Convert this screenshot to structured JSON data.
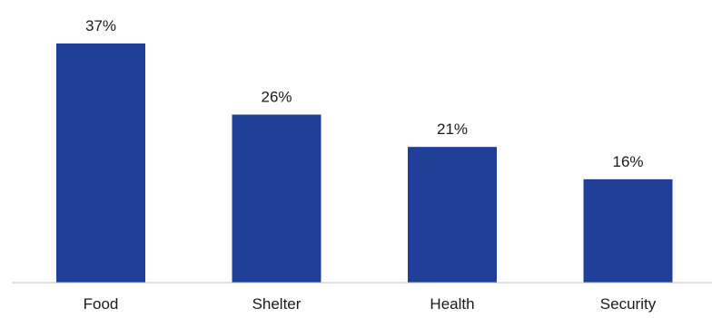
{
  "chart_data": {
    "type": "bar",
    "categories": [
      "Food",
      "Shelter",
      "Health",
      "Security"
    ],
    "values": [
      37,
      26,
      21,
      16
    ],
    "value_labels": [
      "37%",
      "26%",
      "21%",
      "16%"
    ],
    "unit": "%",
    "title": "",
    "xlabel": "",
    "ylabel": "",
    "ylim": [
      0,
      37
    ],
    "bar_color": "#1f4096",
    "axis_color": "#bfbfbf",
    "grid": false,
    "legend": "none"
  }
}
